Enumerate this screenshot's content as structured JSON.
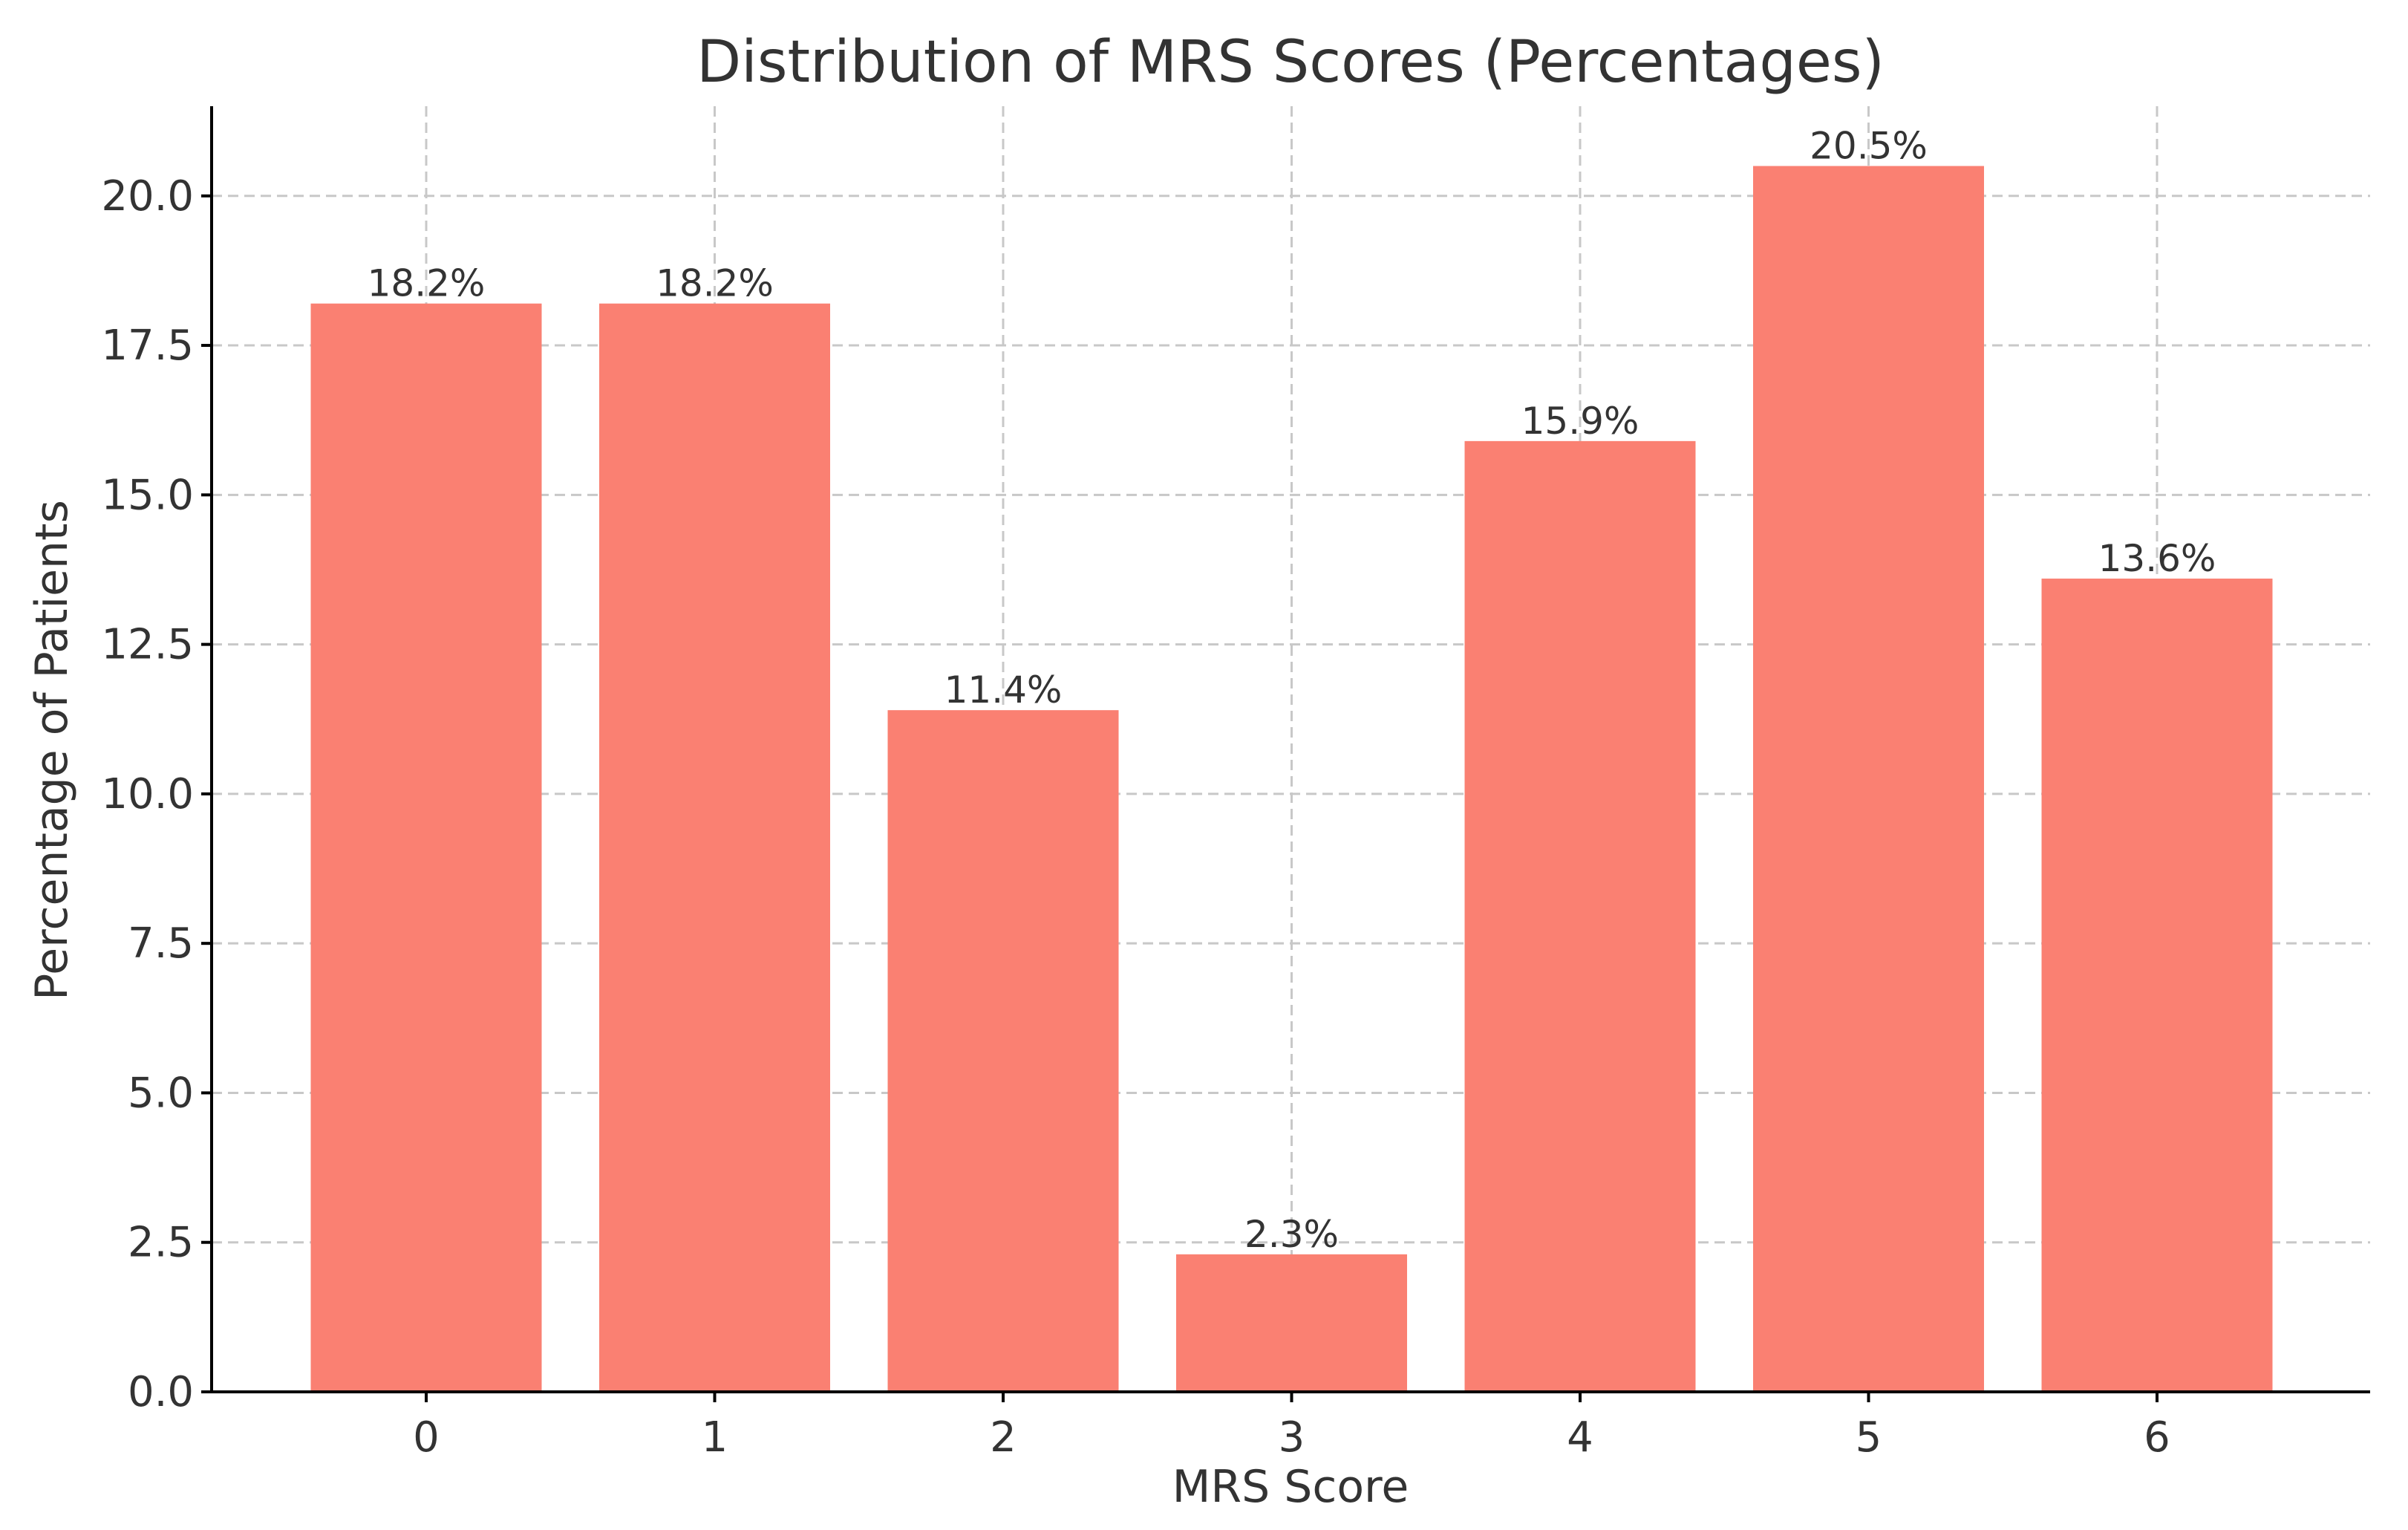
{
  "chart_data": {
    "type": "bar",
    "title": "Distribution of MRS Scores (Percentages)",
    "xlabel": "MRS Score",
    "ylabel": "Percentage of Patients",
    "categories": [
      "0",
      "1",
      "2",
      "3",
      "4",
      "5",
      "6"
    ],
    "values": [
      18.2,
      18.2,
      11.4,
      2.3,
      15.9,
      20.5,
      13.6
    ],
    "data_labels": [
      "18.2%",
      "18.2%",
      "11.4%",
      "2.3%",
      "15.9%",
      "20.5%",
      "13.6%"
    ],
    "ylim": [
      0,
      21.5
    ],
    "yticks": [
      0,
      2.5,
      5,
      7.5,
      10,
      12.5,
      15,
      17.5,
      20
    ],
    "ytick_labels": [
      "0.0",
      "2.5",
      "5.0",
      "7.5",
      "10.0",
      "12.5",
      "15.0",
      "17.5",
      "20.0"
    ],
    "grid": true,
    "bar_color": "#fa8072"
  }
}
